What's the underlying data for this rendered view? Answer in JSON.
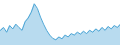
{
  "chart_data": {
    "type": "area",
    "values": [
      62,
      68,
      58,
      72,
      65,
      75,
      68,
      62,
      80,
      88,
      100,
      118,
      108,
      90,
      75,
      62,
      52,
      45,
      42,
      48,
      44,
      52,
      48,
      55,
      52,
      58,
      54,
      60,
      55,
      62,
      58,
      65,
      60,
      68,
      62,
      70,
      65,
      72,
      68,
      75
    ],
    "color": "#4da6d6",
    "xlim": [
      0,
      39
    ],
    "ylim": [
      30,
      125
    ],
    "tick_labels": false
  }
}
